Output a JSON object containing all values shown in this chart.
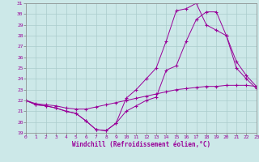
{
  "line1": {
    "x": [
      0,
      1,
      2,
      3,
      4,
      5,
      6,
      7,
      8,
      9,
      10,
      11,
      12,
      13,
      14,
      15,
      16,
      17,
      18,
      19,
      20,
      21,
      22,
      23
    ],
    "y": [
      22.0,
      21.7,
      21.6,
      21.5,
      21.3,
      21.2,
      21.2,
      21.4,
      21.6,
      21.8,
      22.0,
      22.2,
      22.4,
      22.6,
      22.8,
      23.0,
      23.1,
      23.2,
      23.3,
      23.3,
      23.4,
      23.4,
      23.4,
      23.3
    ]
  },
  "line2": {
    "x": [
      0,
      1,
      2,
      3,
      4,
      5,
      6,
      7,
      8,
      9,
      10,
      11,
      12,
      13,
      14,
      15,
      16,
      17,
      18,
      19,
      20,
      21,
      22,
      23
    ],
    "y": [
      22.0,
      21.6,
      21.5,
      21.3,
      21.0,
      20.8,
      20.1,
      19.3,
      19.2,
      19.9,
      21.0,
      21.5,
      22.0,
      22.3,
      24.8,
      25.2,
      27.5,
      29.5,
      30.2,
      30.2,
      28.0,
      25.6,
      24.3,
      23.3
    ]
  },
  "line3": {
    "x": [
      0,
      1,
      2,
      3,
      4,
      5,
      6,
      7,
      8,
      9,
      10,
      11,
      12,
      13,
      14,
      15,
      16,
      17,
      18,
      19,
      20,
      21,
      22,
      23
    ],
    "y": [
      22.0,
      21.6,
      21.5,
      21.3,
      21.0,
      20.8,
      20.1,
      19.3,
      19.2,
      19.9,
      22.2,
      23.0,
      24.0,
      25.0,
      27.5,
      30.3,
      30.5,
      31.0,
      29.0,
      28.5,
      28.0,
      25.0,
      24.0,
      23.1
    ]
  },
  "color": "#990099",
  "bg_color": "#cce8e8",
  "grid_color": "#aacccc",
  "xlabel": "Windchill (Refroidissement éolien,°C)",
  "xlim": [
    0,
    23
  ],
  "ylim": [
    19,
    31
  ],
  "yticks": [
    19,
    20,
    21,
    22,
    23,
    24,
    25,
    26,
    27,
    28,
    29,
    30,
    31
  ],
  "xticks": [
    0,
    1,
    2,
    3,
    4,
    5,
    6,
    7,
    8,
    9,
    10,
    11,
    12,
    13,
    14,
    15,
    16,
    17,
    18,
    19,
    20,
    21,
    22,
    23
  ]
}
